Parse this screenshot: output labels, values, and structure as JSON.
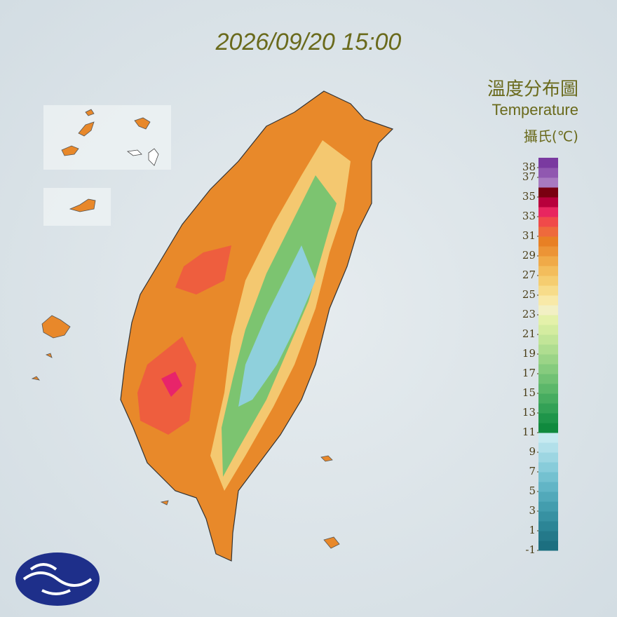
{
  "timestamp": "2026/09/20 15:00",
  "legend": {
    "title": "溫度分布圖",
    "subtitle": "Temperature",
    "unit": "攝氏(℃)",
    "lim": [
      -1,
      39
    ],
    "ticks": [
      38,
      37,
      35,
      33,
      31,
      29,
      27,
      25,
      23,
      21,
      19,
      17,
      15,
      13,
      11,
      9,
      7,
      5,
      3,
      1,
      -1
    ],
    "colors": [
      "#1c6f80",
      "#24798a",
      "#2c8596",
      "#3791a2",
      "#439dae",
      "#52a9ba",
      "#62b5c6",
      "#74c1d0",
      "#88ccda",
      "#9dd6e2",
      "#b2e0ea",
      "#c6eaf1",
      "#108a3e",
      "#1f954a",
      "#33a156",
      "#47ac60",
      "#5cb76a",
      "#71c174",
      "#86cb7e",
      "#9bd487",
      "#afdd90",
      "#c2e598",
      "#d4eca0",
      "#e4f1aa",
      "#f2f0c4",
      "#f8e9a8",
      "#f7dc8a",
      "#f5cd70",
      "#f3bd5c",
      "#f0aa48",
      "#ec9436",
      "#e88024",
      "#ee6a3c",
      "#f04a4a",
      "#e82660",
      "#b8003c",
      "#7a0010",
      "#a87ac0",
      "#9058b0",
      "#7a3aa0"
    ]
  }
}
